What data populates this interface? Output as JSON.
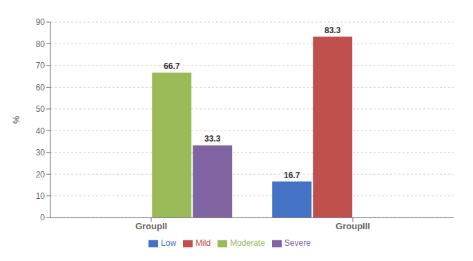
{
  "chart_data": {
    "type": "bar",
    "categories": [
      "GroupII",
      "GroupIII"
    ],
    "series": [
      {
        "name": "Low",
        "color": "#4472C4",
        "values": [
          0,
          16.7
        ]
      },
      {
        "name": "Mild",
        "color": "#C0504D",
        "values": [
          0,
          83.3
        ]
      },
      {
        "name": "Moderate",
        "color": "#9BBB59",
        "values": [
          66.7,
          0
        ]
      },
      {
        "name": "Severe",
        "color": "#8064A2",
        "values": [
          33.3,
          0
        ]
      }
    ],
    "ylabel": "%",
    "ylim": [
      0,
      90
    ],
    "yticks": [
      0,
      10,
      20,
      30,
      40,
      50,
      60,
      70,
      80,
      90
    ],
    "grid": true,
    "legend": "bottom",
    "data_labels": true
  }
}
